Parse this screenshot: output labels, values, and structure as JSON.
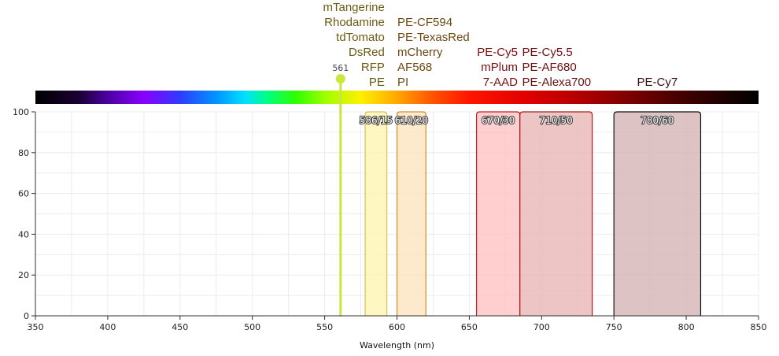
{
  "chart_data": {
    "type": "filter-spectrum",
    "xlabel": "Wavelength (nm)",
    "ylabel": "",
    "xlim": [
      350,
      850
    ],
    "ylim": [
      0,
      100
    ],
    "x_ticks": [
      350,
      400,
      450,
      500,
      550,
      600,
      650,
      700,
      750,
      800,
      850
    ],
    "y_ticks": [
      0,
      20,
      40,
      60,
      80,
      100
    ],
    "grid": true,
    "laser": {
      "wavelength": 561,
      "label": "561",
      "color": "#c8e63c"
    },
    "filters": [
      {
        "label": "586/15",
        "start": 578,
        "end": 593,
        "fill": "#fff5b3",
        "stroke": "#d9c25a",
        "fluor_color": "#6b5a12",
        "fluorophores": [
          [
            "mTangerine",
            "Rhodamine",
            "tdTomato",
            "DsRed",
            "RFP",
            "PE"
          ]
        ]
      },
      {
        "label": "610/20",
        "start": 600,
        "end": 620,
        "fill": "#fde3bf",
        "stroke": "#d48a2c",
        "fluor_color": "#6b4a12",
        "fluorophores": [
          [
            "PE-CF594",
            "PE-TexasRed",
            "mCherry",
            "AF568",
            "PI"
          ]
        ]
      },
      {
        "label": "670/30",
        "start": 655,
        "end": 685,
        "fill": "#ffc2c2",
        "stroke": "#c41a1a",
        "fluor_color": "#7a1010",
        "fluorophores": [
          [
            "PE-Cy5",
            "mPlum",
            "7-AAD"
          ]
        ]
      },
      {
        "label": "710/50",
        "start": 685,
        "end": 735,
        "fill": "#e8b6b6",
        "stroke": "#a81c1c",
        "fluor_color": "#6a1010",
        "fluorophores": [
          [
            "PE-Cy5.5",
            "PE-AF680",
            "PE-Alexa700"
          ]
        ]
      },
      {
        "label": "780/60",
        "start": 750,
        "end": 810,
        "fill": "#d4b4b4",
        "stroke": "#111111",
        "fluor_color": "#3a1010",
        "fluorophores": [
          [
            "PE-Cy7"
          ]
        ]
      }
    ]
  }
}
